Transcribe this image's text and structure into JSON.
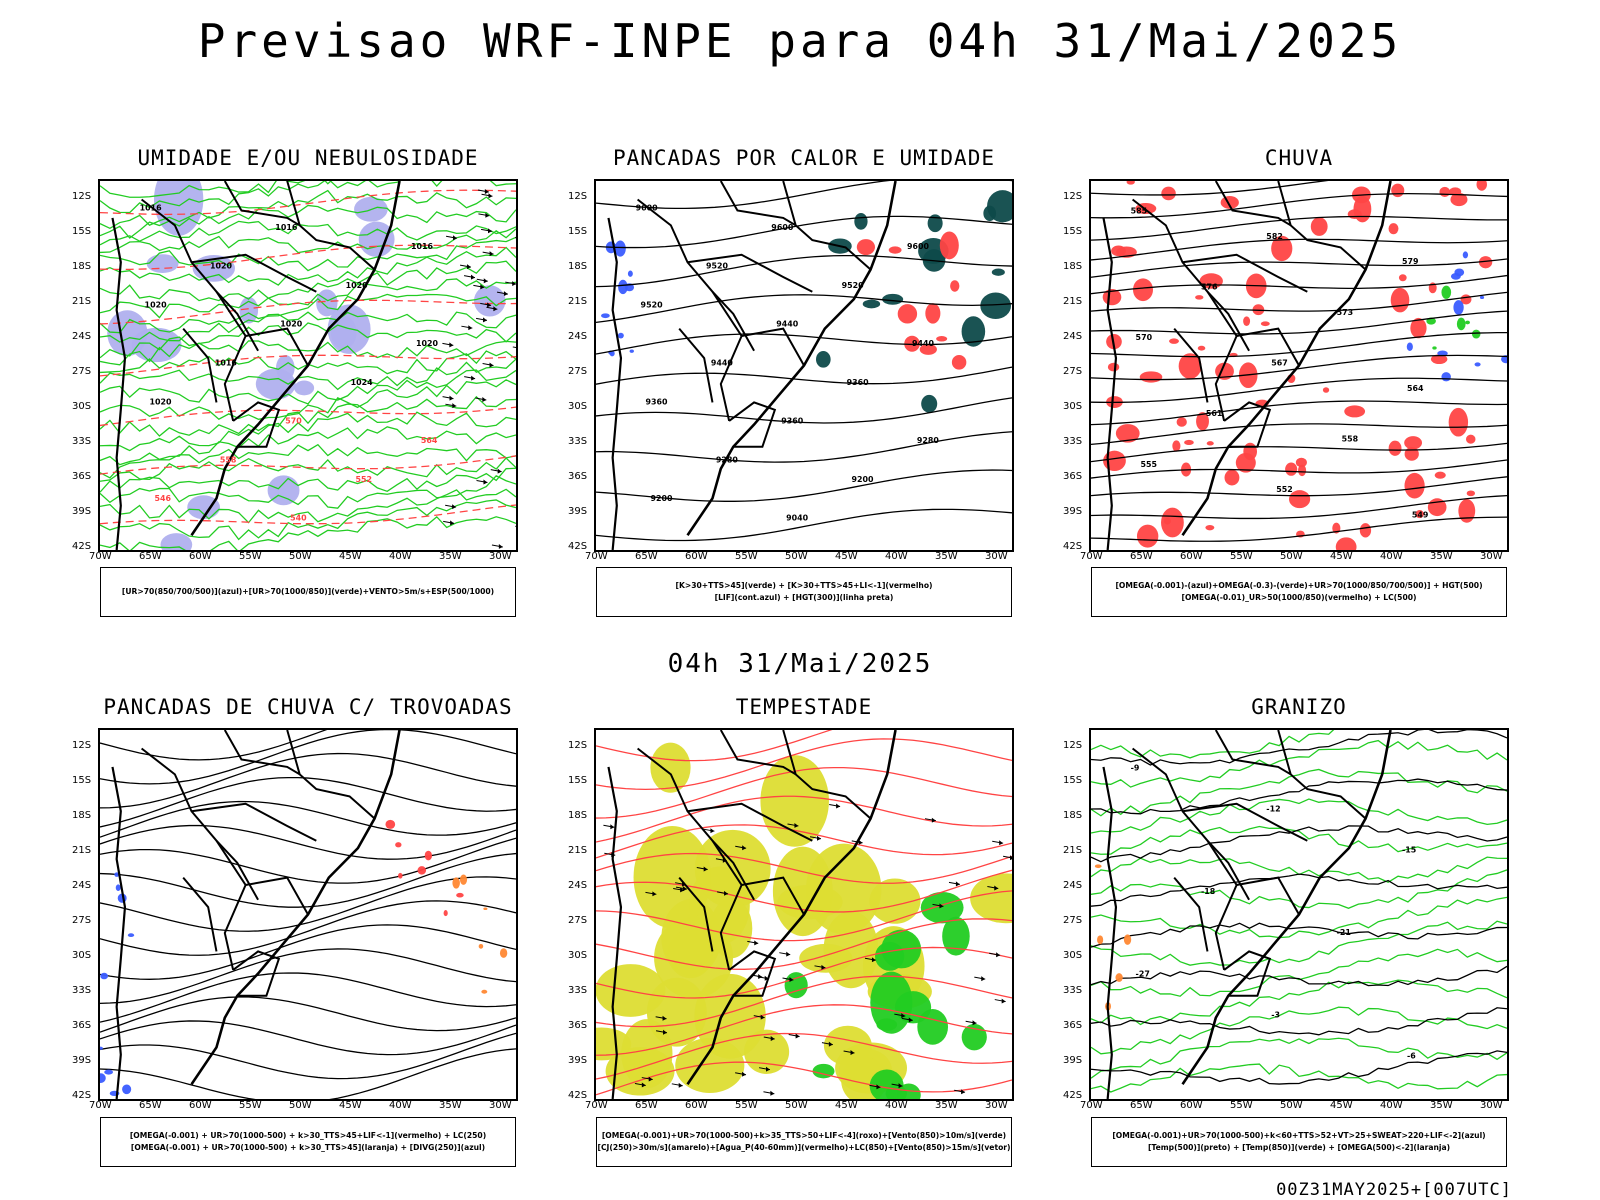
{
  "title": "Previsao WRF-INPE  para 04h 31/Mai/2025",
  "mid_time": "04h 31/Mai/2025",
  "footer": "00Z31MAY2025+[007UTC]",
  "lat_labels": [
    "12S",
    "15S",
    "18S",
    "21S",
    "24S",
    "27S",
    "30S",
    "33S",
    "36S",
    "39S",
    "42S"
  ],
  "lon_labels": [
    "70W",
    "65W",
    "60W",
    "55W",
    "50W",
    "45W",
    "40W",
    "35W",
    "30W"
  ],
  "colors": {
    "blue": "#3a5cff",
    "green": "#22cc22",
    "red": "#ff4444",
    "darkteal": "#0e4a4a",
    "lavender": "#b0b0ee",
    "yellow": "#dddd33",
    "orange": "#ff8833"
  },
  "panels": [
    {
      "id": "umidade",
      "title": "UMIDADE E/OU NEBULOSIDADE",
      "legend": [
        "[UR>70(850/700/500)](azul)+[UR>70(1000/850)](verde)+VENTO>5m/s+ESP(500/1000)"
      ],
      "contour_labels": [
        "1016",
        "1016",
        "1016",
        "1020",
        "1020",
        "1020",
        "1020",
        "1020",
        "1016",
        "1024",
        "1020",
        "570",
        "564",
        "558",
        "552",
        "546",
        "540"
      ]
    },
    {
      "id": "pancadas_calor",
      "title": "PANCADAS POR CALOR E UMIDADE",
      "legend": [
        "[K>30+TTS>45](verde) + [K>30+TTS>45+LI<-1](vermelho)",
        "[LIF](cont.azul) + [HGT(300)](linha preta)"
      ],
      "contour_labels": [
        "9600",
        "9600",
        "9600",
        "9520",
        "9520",
        "9520",
        "9440",
        "9440",
        "9440",
        "9360",
        "9360",
        "9360",
        "9280",
        "9280",
        "9200",
        "9200",
        "9040"
      ]
    },
    {
      "id": "chuva",
      "title": "CHUVA",
      "legend": [
        "[OMEGA(-0.001)-(azul)+OMEGA(-0.3)-(verde)+UR>70(1000/850/700/500)] + HGT(500)",
        "[OMEGA(-0.01)_UR>50(1000/850)(vermelho) + LC(500)"
      ],
      "contour_labels": [
        "585",
        "582",
        "579",
        "576",
        "573",
        "570",
        "567",
        "564",
        "561",
        "558",
        "555",
        "552",
        "549"
      ]
    },
    {
      "id": "trovoadas",
      "title": "PANCADAS DE CHUVA C/ TROVOADAS",
      "legend": [
        "[OMEGA(-0.001) + UR>70(1000-500) + k>30_TTS>45+LIF<-1](vermelho) + LC(250)",
        "[OMEGA(-0.001) + UR>70(1000-500) + k>30_TTS>45](laranja) + [DIVG(250)](azul)"
      ],
      "contour_labels": []
    },
    {
      "id": "tempestade",
      "title": "TEMPESTADE",
      "legend": [
        "[OMEGA(-0.001)+UR>70(1000-500)+k>35_TTS>50+LIF<-4](roxo)+[Vento(850)>10m/s](verde)",
        "[CJ(250)>30m/s](amarelo)+[Agua_P(40-60mm)](vermelho)+LC(850)+[Vento(850)>15m/s](vetor)"
      ],
      "contour_labels": []
    },
    {
      "id": "granizo",
      "title": "GRANIZO",
      "legend": [
        "[OMEGA(-0.001)+UR>70(1000-500)+k<60+TTS>52+VT>25+SWEAT>220+LIF<-2](azul)",
        "[Temp(500)](preto) + [Temp(850)](verde) + [OMEGA(500)<-2](laranja)"
      ],
      "contour_labels": [
        "-9",
        "-12",
        "-15",
        "-18",
        "-21",
        "-27",
        "-3",
        "-6"
      ]
    }
  ]
}
